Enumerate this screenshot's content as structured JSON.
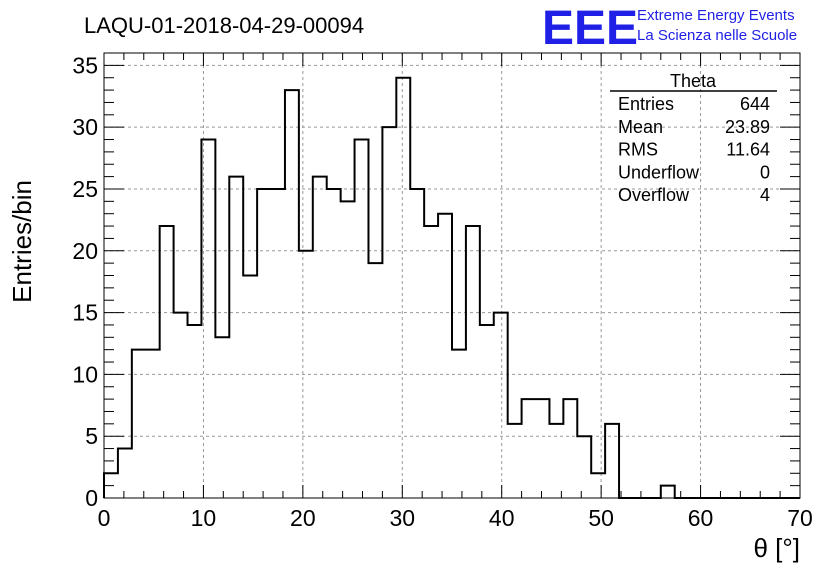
{
  "chart_data": {
    "type": "histogram",
    "title": "LAQU-01-2018-04-29-00094",
    "xlabel": "θ [°]",
    "ylabel": "Entries/bin",
    "xlim": [
      0,
      70
    ],
    "ylim": [
      0,
      36
    ],
    "xticks": [
      0,
      10,
      20,
      30,
      40,
      50,
      60,
      70
    ],
    "yticks": [
      0,
      5,
      10,
      15,
      20,
      25,
      30,
      35
    ],
    "grid": true,
    "bin_width": 1.4,
    "bin_start": 0,
    "values": [
      2,
      4,
      12,
      12,
      22,
      15,
      14,
      29,
      13,
      26,
      18,
      25,
      25,
      33,
      20,
      26,
      25,
      24,
      29,
      19,
      30,
      34,
      25,
      22,
      23,
      12,
      22,
      14,
      15,
      6,
      8,
      8,
      6,
      8,
      5,
      2,
      6,
      0,
      0,
      0,
      1,
      0,
      0,
      0,
      0,
      0,
      0,
      0,
      0,
      0
    ],
    "stats": {
      "name": "Theta",
      "rows": [
        {
          "label": "Entries",
          "value": "644"
        },
        {
          "label": "Mean",
          "value": "23.89"
        },
        {
          "label": "RMS",
          "value": "11.64"
        },
        {
          "label": "Underflow",
          "value": "0"
        },
        {
          "label": "Overflow",
          "value": "4"
        }
      ]
    }
  },
  "logo": {
    "mark": "EEE",
    "line1": "Extreme Energy Events",
    "line2": "La Scienza nelle Scuole",
    "color": "#1f1fe6"
  }
}
